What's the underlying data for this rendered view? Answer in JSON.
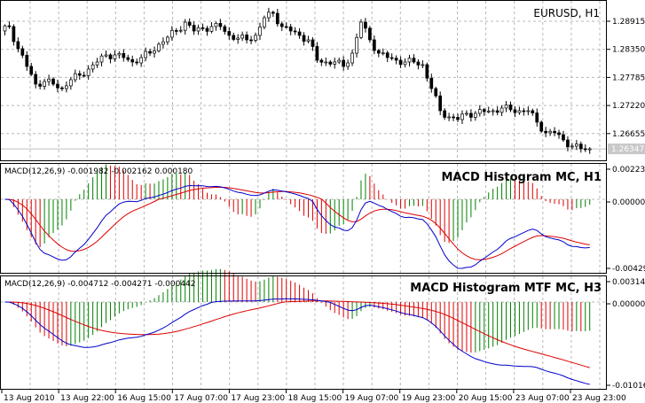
{
  "chart_data": [
    {
      "type": "candlestick",
      "title": "EURUSD, H1",
      "y_ticks": [
        "1.28915",
        "1.28350",
        "1.27785",
        "1.27220",
        "1.26655"
      ],
      "current_price": "1.26347",
      "grid": true,
      "close": [
        1.28719,
        1.28808,
        1.28363,
        1.28006,
        1.2765,
        1.27703,
        1.2765,
        1.27561,
        1.27739,
        1.27828,
        1.27953,
        1.28095,
        1.28238,
        1.28238,
        1.28184,
        1.28095,
        1.28184,
        1.28273,
        1.28452,
        1.28594,
        1.28719,
        1.28897,
        1.28719,
        1.28772,
        1.28808,
        1.28808,
        1.2863,
        1.28576,
        1.28541,
        1.2863,
        1.28986,
        1.29075,
        1.28808,
        1.28719,
        1.2863,
        1.28541,
        1.28131,
        1.28095,
        1.28095,
        1.28006,
        1.28273,
        1.28897,
        1.28541,
        1.28273,
        1.28184,
        1.28131,
        1.28095,
        1.28095,
        1.28042,
        1.27561,
        1.27115,
        1.2699,
        1.26937,
        1.27062,
        1.27062,
        1.27097,
        1.27115,
        1.27169,
        1.27133,
        1.27115,
        1.27115,
        1.26884,
        1.2667,
        1.2667,
        1.26527,
        1.26402,
        1.26349,
        1.26347
      ]
    },
    {
      "type": "macd",
      "title": "MACD Histogram MC, H1",
      "legend": "MACD(12,26,9) -0.001982 -0.002162 0.000180",
      "y_ticks": [
        "0.00223",
        "0.00000",
        "-0.00429"
      ],
      "colors": {
        "main": "#0000cc",
        "signal": "#dd0000",
        "hist_up": "#008000",
        "hist_down": "#dd0000"
      }
    },
    {
      "type": "macd",
      "title": "MACD Histogram MTF MC, H3",
      "legend": "MACD(12,26,9) -0.004712 -0.004271 -0.000442",
      "y_ticks": [
        "0.00314",
        "0.00000",
        "-0.01016"
      ],
      "colors": {
        "main": "#0000cc",
        "signal": "#dd0000",
        "hist_up": "#008000",
        "hist_down": "#dd0000"
      }
    }
  ],
  "x_ticks": [
    "13 Aug 2010",
    "13 Aug 22:00",
    "16 Aug 15:00",
    "17 Aug 07:00",
    "17 Aug 23:00",
    "18 Aug 15:00",
    "19 Aug 07:00",
    "19 Aug 23:00",
    "20 Aug 15:00",
    "23 Aug 07:00",
    "23 Aug 23:00"
  ]
}
